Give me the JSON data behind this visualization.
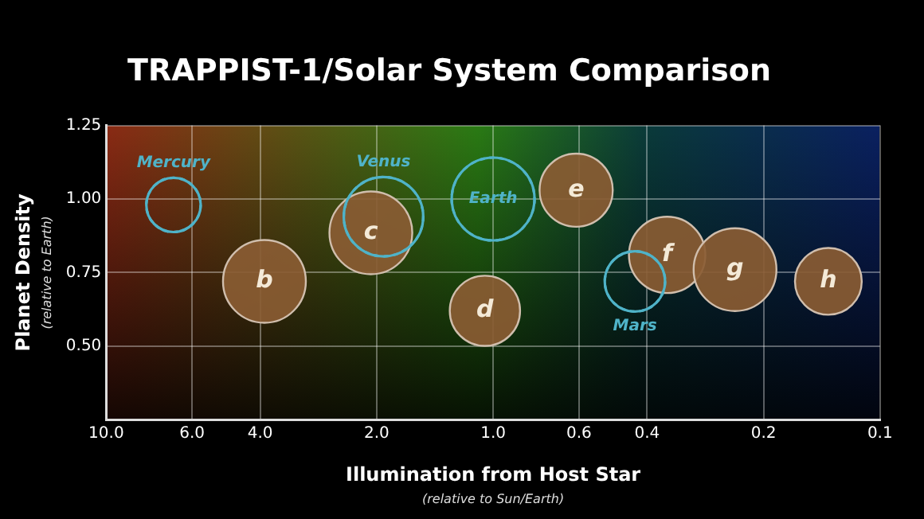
{
  "chart_data": {
    "type": "bubble",
    "title": "TRAPPIST-1/Solar System Comparison",
    "xlabel": "Illumination from Host Star",
    "ylabel": "Planet Density",
    "log": "x",
    "xlim": [
      10,
      0.1
    ],
    "xticks": [
      {
        "value": 10,
        "label": "10.0"
      },
      {
        "value": 6,
        "label": "6.0"
      },
      {
        "value": 4,
        "label": "4.0"
      },
      {
        "value": 2,
        "label": "2.0"
      },
      {
        "value": 1,
        "label": "1.0"
      },
      0.6,
      0.4,
      0.2,
      0.1
    ],
    "ylim": [
      0.25,
      1.25
    ],
    "yticks": [
      {
        "value": 0.25,
        "label": null
      },
      {
        "value": 0.5,
        "label": "0.50"
      },
      {
        "value": 0.75,
        "label": "0.75"
      },
      {
        "value": 1,
        "label": "1.00"
      },
      {
        "value": 1.25,
        "label": "1.25"
      }
    ],
    "grid": true,
    "legend": false,
    "series": [
      {
        "color": "#4fb3c8",
        "line_style": "dashed",
        "x": [
          6.7,
          1.92,
          1.0,
          0.43
        ],
        "values": [
          0.98,
          0.94,
          1.0,
          0.72
        ],
        "sizes": [
          0.43,
          0.92,
          1,
          0.53
        ]
      },
      {
        "color": "#8a5c33",
        "x": [
          3.9,
          2.07,
          1.05,
          0.61,
          0.355,
          0.237,
          0.136
        ],
        "values": [
          0.72,
          0.885,
          0.62,
          1.03,
          0.81,
          0.76,
          0.72
        ],
        "sizes": [
          1,
          1,
          0.72,
          0.78,
          0.85,
          1,
          0.65
        ]
      }
    ],
    "annotations": [
      "(relative to Earth)",
      "(relative to Sun/Earth)",
      {
        "text": "Mercury",
        "x": 6.7,
        "y": 0.98
      },
      {
        "text": "Venus",
        "x": 1.92,
        "y": 0.94
      },
      {
        "text": "Earth",
        "x": 1.0,
        "y": 1.0
      },
      {
        "text": "Mars",
        "x": 0.43,
        "y": 0.72
      },
      {
        "text": "b",
        "x": 3.9,
        "y": 0.72
      },
      {
        "text": "c",
        "x": 2.07,
        "y": 0.885
      },
      {
        "text": "d",
        "x": 1.05,
        "y": 0.62
      },
      {
        "text": "e",
        "x": 0.61,
        "y": 1.03
      },
      {
        "text": "f",
        "x": 0.355,
        "y": 0.81
      },
      {
        "text": "g",
        "x": 0.237,
        "y": 0.76
      },
      {
        "text": "h",
        "x": 0.136,
        "y": 0.72
      }
    ]
  }
}
